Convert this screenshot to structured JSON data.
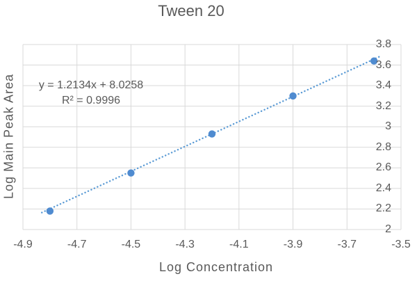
{
  "title": "Tween 20",
  "axes": {
    "x_title": "Log Concentration",
    "y_title": "Log Main Peak Area"
  },
  "annotation": {
    "equation": "y = 1.2134x + 8.0258",
    "r_squared": "R² = 0.9996"
  },
  "chart_data": {
    "type": "scatter",
    "title": "Tween 20",
    "xlabel": "Log Concentration",
    "ylabel": "Log Main Peak Area",
    "x": [
      -4.8,
      -4.5,
      -4.2,
      -3.9,
      -3.6
    ],
    "y": [
      2.18,
      2.55,
      2.93,
      3.3,
      3.64
    ],
    "xlim": [
      -4.9,
      -3.5
    ],
    "ylim": [
      2,
      3.8
    ],
    "x_ticks": [
      "-4.9",
      "-4.7",
      "-4.5",
      "-4.3",
      "-4.1",
      "-3.9",
      "-3.7",
      "-3.5"
    ],
    "y_ticks": [
      "3.8",
      "3.6",
      "3.4",
      "3.2",
      "3",
      "2.8",
      "2.6",
      "2.4",
      "2.2",
      "2"
    ],
    "y_axis_side": "right",
    "grid": true,
    "legend": "none",
    "trendline": {
      "type": "linear",
      "slope": 1.2134,
      "intercept": 8.0258,
      "r2": 0.9996,
      "style": "dotted",
      "x_start": -4.83,
      "x_end": -3.58,
      "equation_label": "y = 1.2134x + 8.0258",
      "r2_label": "R² = 0.9996"
    },
    "colors": {
      "marker": "#4F8BD0",
      "trendline": "#5B9BD5",
      "gridline": "#D9D9D9",
      "text": "#595959",
      "background": "#FFFFFF"
    }
  }
}
